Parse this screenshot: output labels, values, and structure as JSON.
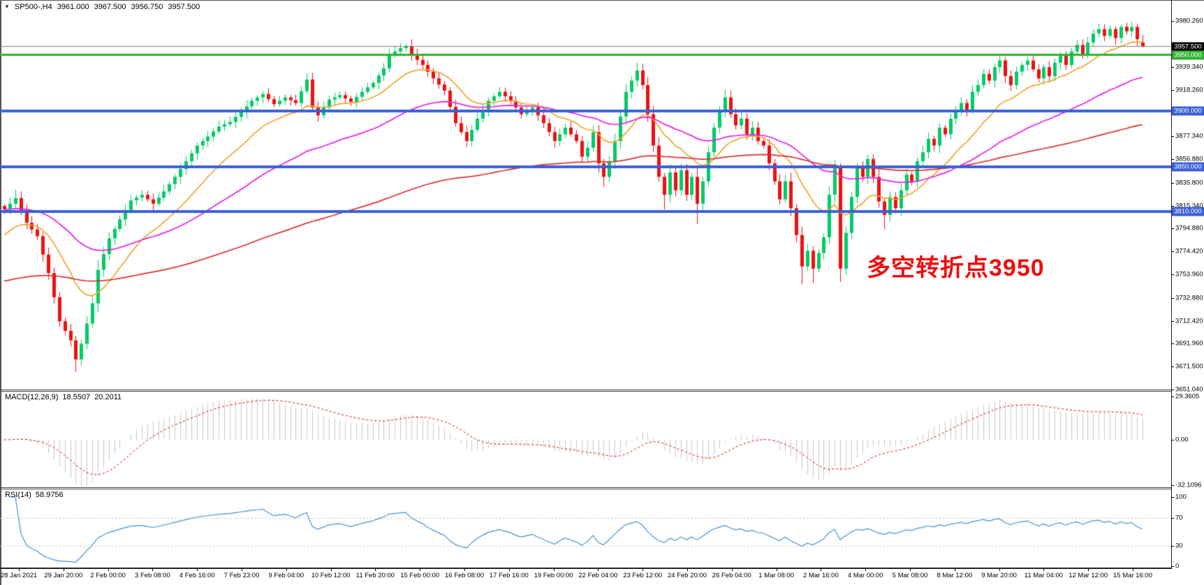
{
  "header": {
    "collapse_glyph": "▼",
    "symbol_period": "SP500-,H4",
    "open": "3961.000",
    "high": "3967.500",
    "low": "3956.750",
    "close": "3957.500"
  },
  "panels": {
    "macd": {
      "label": "MACD(12,26,9)",
      "value_main": "18.5507",
      "value_signal": "20.2011"
    },
    "rsi": {
      "label": "RSI(14)",
      "value": "58.9756"
    }
  },
  "annotation": {
    "text": "多空转折点3950",
    "color": "#f10c0c"
  },
  "chart_data": {
    "type": "candlestick",
    "symbol": "SP500-",
    "timeframe": "H4",
    "bars": 208,
    "first_open": 3815,
    "last_candle": {
      "open": 3961.0,
      "high": 3967.5,
      "low": 3956.75,
      "close": 3957.5
    },
    "price_axis_labels": [
      {
        "text": "3980.260",
        "value": 3980.26
      },
      {
        "text": "3939.340",
        "value": 3939.34
      },
      {
        "text": "3918.260",
        "value": 3918.26
      },
      {
        "text": "3877.340",
        "value": 3877.34
      },
      {
        "text": "3856.880",
        "value": 3856.88
      },
      {
        "text": "3835.800",
        "value": 3835.8
      },
      {
        "text": "3815.340",
        "value": 3815.34
      },
      {
        "text": "3794.880",
        "value": 3794.88
      },
      {
        "text": "3774.420",
        "value": 3774.42
      },
      {
        "text": "3753.960",
        "value": 3753.96
      },
      {
        "text": "3732.880",
        "value": 3732.88
      },
      {
        "text": "3712.420",
        "value": 3712.42
      },
      {
        "text": "3691.960",
        "value": 3691.96
      },
      {
        "text": "3671.500",
        "value": 3671.5
      },
      {
        "text": "3651.040",
        "value": 3651.04
      }
    ],
    "time_axis_labels": [
      "28 Jan 2021",
      "29 Jan 20:00",
      "2 Feb 00:00",
      "3 Feb 08:00",
      "4 Feb 16:00",
      "7 Feb 23:00",
      "9 Feb 04:00",
      "10 Feb 12:00",
      "11 Feb 20:00",
      "15 Feb 00:00",
      "16 Feb 08:00",
      "17 Feb 16:00",
      "19 Feb 00:00",
      "22 Feb 04:00",
      "23 Feb 12:00",
      "24 Feb 20:00",
      "26 Feb 04:00",
      "1 Mar 08:00",
      "2 Mar 16:00",
      "4 Mar 00:00",
      "5 Mar 08:00",
      "8 Mar 12:00",
      "9 Mar 20:00",
      "11 Mar 04:00",
      "12 Mar 12:00",
      "15 Mar 16:00"
    ],
    "levels": [
      {
        "text": "3957.500",
        "value": 3957.5,
        "line_color": "#808080",
        "badge_color": "#000000",
        "thickness": 1
      },
      {
        "text": "3950.000",
        "value": 3950.0,
        "line_color": "#32b132",
        "badge_color": "#32b132",
        "thickness": 3
      },
      {
        "text": "3900.000",
        "value": 3900.0,
        "line_color": "#3b60d6",
        "badge_color": "#3b60d6",
        "thickness": 4
      },
      {
        "text": "3850.000",
        "value": 3850.0,
        "line_color": "#3b60d6",
        "badge_color": "#3b60d6",
        "thickness": 4
      },
      {
        "text": "3810.000",
        "value": 3810.0,
        "line_color": "#3b60d6",
        "badge_color": "#3b60d6",
        "thickness": 4
      }
    ],
    "moving_averages": [
      {
        "name": "ma-fast",
        "color": "#eea52f",
        "period": 15,
        "seed": 3786
      },
      {
        "name": "ma-mid",
        "color": "#e421e4",
        "period": 45,
        "seed": 3812
      },
      {
        "name": "ma-slow",
        "color": "#d93030",
        "period": 140,
        "seed": 3747
      }
    ],
    "macd": {
      "fast": 12,
      "slow": 26,
      "signal": 9,
      "current_main": 18.5507,
      "current_signal": 20.2011,
      "axis": [
        {
          "text": "29.3605",
          "value": 29.3605
        },
        {
          "text": "0.00",
          "value": 0
        },
        {
          "text": "-32.1096",
          "value": -32.1096
        }
      ]
    },
    "rsi": {
      "period": 14,
      "current": 58.9756,
      "axis": [
        100,
        70,
        30,
        0
      ],
      "dashed_levels": [
        70,
        30
      ]
    },
    "colors": {
      "up": "#00cc66",
      "down": "#ee1111",
      "macd_hist": "#c9c9c9",
      "macd_signal": "#dd0000",
      "rsi_line": "#4090d8",
      "dash_gray": "#bbbbbb"
    },
    "close_waypoints": [
      [
        0,
        3812
      ],
      [
        2,
        3822
      ],
      [
        4,
        3800
      ],
      [
        6,
        3788
      ],
      [
        8,
        3755
      ],
      [
        10,
        3712
      ],
      [
        12,
        3695
      ],
      [
        13,
        3678
      ],
      [
        14,
        3692
      ],
      [
        16,
        3728
      ],
      [
        17,
        3758
      ],
      [
        19,
        3786
      ],
      [
        21,
        3803
      ],
      [
        23,
        3820
      ],
      [
        25,
        3825
      ],
      [
        27,
        3817
      ],
      [
        29,
        3828
      ],
      [
        31,
        3841
      ],
      [
        33,
        3855
      ],
      [
        35,
        3869
      ],
      [
        37,
        3877
      ],
      [
        39,
        3886
      ],
      [
        41,
        3890
      ],
      [
        43,
        3899
      ],
      [
        45,
        3909
      ],
      [
        47,
        3915
      ],
      [
        49,
        3906
      ],
      [
        51,
        3912
      ],
      [
        53,
        3907
      ],
      [
        55,
        3928
      ],
      [
        56,
        3903
      ],
      [
        57,
        3896
      ],
      [
        59,
        3910
      ],
      [
        61,
        3914
      ],
      [
        63,
        3908
      ],
      [
        65,
        3917
      ],
      [
        67,
        3925
      ],
      [
        69,
        3938
      ],
      [
        70,
        3950
      ],
      [
        72,
        3956
      ],
      [
        73,
        3958
      ],
      [
        74,
        3950
      ],
      [
        76,
        3941
      ],
      [
        78,
        3929
      ],
      [
        80,
        3918
      ],
      [
        82,
        3889
      ],
      [
        84,
        3873
      ],
      [
        86,
        3893
      ],
      [
        88,
        3909
      ],
      [
        90,
        3917
      ],
      [
        92,
        3909
      ],
      [
        94,
        3897
      ],
      [
        96,
        3903
      ],
      [
        98,
        3889
      ],
      [
        100,
        3873
      ],
      [
        102,
        3885
      ],
      [
        104,
        3873
      ],
      [
        105,
        3859
      ],
      [
        106,
        3867
      ],
      [
        107,
        3881
      ],
      [
        108,
        3853
      ],
      [
        109,
        3841
      ],
      [
        110,
        3855
      ],
      [
        111,
        3873
      ],
      [
        112,
        3895
      ],
      [
        113,
        3917
      ],
      [
        114,
        3927
      ],
      [
        115,
        3936
      ],
      [
        116,
        3923
      ],
      [
        117,
        3897
      ],
      [
        118,
        3869
      ],
      [
        119,
        3841
      ],
      [
        120,
        3825
      ],
      [
        121,
        3845
      ],
      [
        122,
        3829
      ],
      [
        123,
        3847
      ],
      [
        124,
        3825
      ],
      [
        125,
        3841
      ],
      [
        126,
        3817
      ],
      [
        127,
        3837
      ],
      [
        128,
        3863
      ],
      [
        129,
        3885
      ],
      [
        130,
        3899
      ],
      [
        131,
        3912
      ],
      [
        132,
        3897
      ],
      [
        133,
        3887
      ],
      [
        134,
        3893
      ],
      [
        135,
        3879
      ],
      [
        136,
        3885
      ],
      [
        137,
        3873
      ],
      [
        138,
        3869
      ],
      [
        139,
        3853
      ],
      [
        140,
        3837
      ],
      [
        141,
        3821
      ],
      [
        142,
        3837
      ],
      [
        143,
        3813
      ],
      [
        144,
        3789
      ],
      [
        145,
        3761
      ],
      [
        146,
        3775
      ],
      [
        147,
        3759
      ],
      [
        148,
        3773
      ],
      [
        149,
        3787
      ],
      [
        150,
        3825
      ],
      [
        151,
        3849
      ],
      [
        152,
        3759
      ],
      [
        153,
        3791
      ],
      [
        154,
        3823
      ],
      [
        155,
        3849
      ],
      [
        156,
        3841
      ],
      [
        157,
        3857
      ],
      [
        158,
        3841
      ],
      [
        159,
        3819
      ],
      [
        160,
        3807
      ],
      [
        161,
        3823
      ],
      [
        162,
        3813
      ],
      [
        163,
        3829
      ],
      [
        164,
        3843
      ],
      [
        165,
        3837
      ],
      [
        166,
        3855
      ],
      [
        167,
        3863
      ],
      [
        168,
        3875
      ],
      [
        169,
        3869
      ],
      [
        170,
        3885
      ],
      [
        171,
        3879
      ],
      [
        172,
        3893
      ],
      [
        173,
        3899
      ],
      [
        174,
        3907
      ],
      [
        175,
        3901
      ],
      [
        176,
        3917
      ],
      [
        177,
        3923
      ],
      [
        178,
        3933
      ],
      [
        179,
        3927
      ],
      [
        180,
        3939
      ],
      [
        181,
        3945
      ],
      [
        182,
        3931
      ],
      [
        183,
        3923
      ],
      [
        184,
        3935
      ],
      [
        185,
        3941
      ],
      [
        186,
        3945
      ],
      [
        187,
        3937
      ],
      [
        188,
        3929
      ],
      [
        189,
        3939
      ],
      [
        190,
        3931
      ],
      [
        191,
        3943
      ],
      [
        192,
        3949
      ],
      [
        193,
        3941
      ],
      [
        194,
        3953
      ],
      [
        195,
        3959
      ],
      [
        196,
        3951
      ],
      [
        197,
        3961
      ],
      [
        198,
        3969
      ],
      [
        199,
        3973
      ],
      [
        200,
        3967
      ],
      [
        201,
        3973
      ],
      [
        202,
        3965
      ],
      [
        203,
        3975
      ],
      [
        204,
        3971
      ],
      [
        205,
        3975
      ],
      [
        206,
        3964
      ],
      [
        207,
        3957.5
      ]
    ],
    "wick_overrides": {
      "2": {
        "high": 3830
      },
      "13": {
        "low": 3667
      },
      "55": {
        "high": 3933
      },
      "73": {
        "high": 3960
      },
      "109": {
        "low": 3832
      },
      "115": {
        "high": 3943
      },
      "120": {
        "low": 3812
      },
      "126": {
        "low": 3799
      },
      "131": {
        "high": 3919
      },
      "145": {
        "low": 3745
      },
      "147": {
        "low": 3746
      },
      "151": {
        "high": 3856
      },
      "152": {
        "high": 3853,
        "low": 3747
      },
      "160": {
        "low": 3794
      },
      "181": {
        "high": 3950
      },
      "199": {
        "high": 3978
      },
      "203": {
        "high": 3977
      }
    }
  }
}
